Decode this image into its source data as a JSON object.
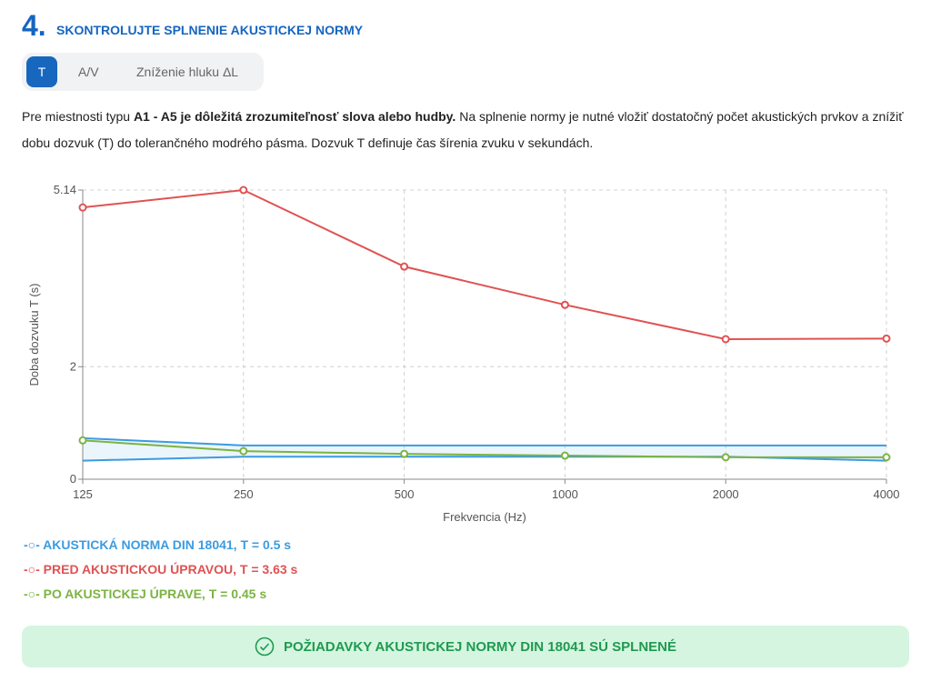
{
  "header": {
    "number": "4.",
    "title": "SKONTROLUJTE SPLNENIE AKUSTICKEJ NORMY"
  },
  "tabs": [
    {
      "label": "T",
      "active": true
    },
    {
      "label": "A/V"
    },
    {
      "label": "Zníženie hluku ΔL"
    }
  ],
  "description": {
    "p1": "Pre miestnosti typu ",
    "bold": "A1 - A5 je dôležitá zrozumiteľnosť slova alebo hudby.",
    "p2": " Na splnenie normy je nutné vložiť dostatočný počet akustických prvkov a znížiť dobu dozvuk (T) do tolerančného modrého pásma. Dozvuk T definuje čas šírenia zvuku v sekundách."
  },
  "chart_data": {
    "type": "line",
    "xlabel": "Frekvencia (Hz)",
    "ylabel": "Doba dozvuku T (s)",
    "categories": [
      "125",
      "250",
      "500",
      "1000",
      "2000",
      "4000"
    ],
    "yticks": [
      "0",
      "2",
      "5.14"
    ],
    "ylim": [
      0,
      5.14
    ],
    "grid": true,
    "legend_position": "bottom-left",
    "tolerance_band": {
      "upper": [
        0.73,
        0.6,
        0.6,
        0.6,
        0.6,
        0.6
      ],
      "lower": [
        0.33,
        0.4,
        0.4,
        0.4,
        0.4,
        0.33
      ],
      "color": "#3b9be0"
    },
    "series": [
      {
        "name": "AKUSTICKÁ NORMA DIN 18041, T = 0.5 s",
        "color": "#3b9be0",
        "values": null
      },
      {
        "name": "PRED AKUSTICKOU ÚPRAVOU, T = 3.63 s",
        "color": "#e05252",
        "values": [
          4.83,
          5.14,
          3.78,
          3.1,
          2.49,
          2.5
        ]
      },
      {
        "name": "PO AKUSTICKEJ ÚPRAVE, T = 0.45 s",
        "color": "#7cb342",
        "values": [
          0.69,
          0.5,
          0.45,
          0.42,
          0.39,
          0.39
        ]
      }
    ]
  },
  "banner": {
    "text": "POŽIADAVKY AKUSTICKEJ NORMY DIN 18041 SÚ SPLNENÉ",
    "icon": "check-circle-icon"
  }
}
